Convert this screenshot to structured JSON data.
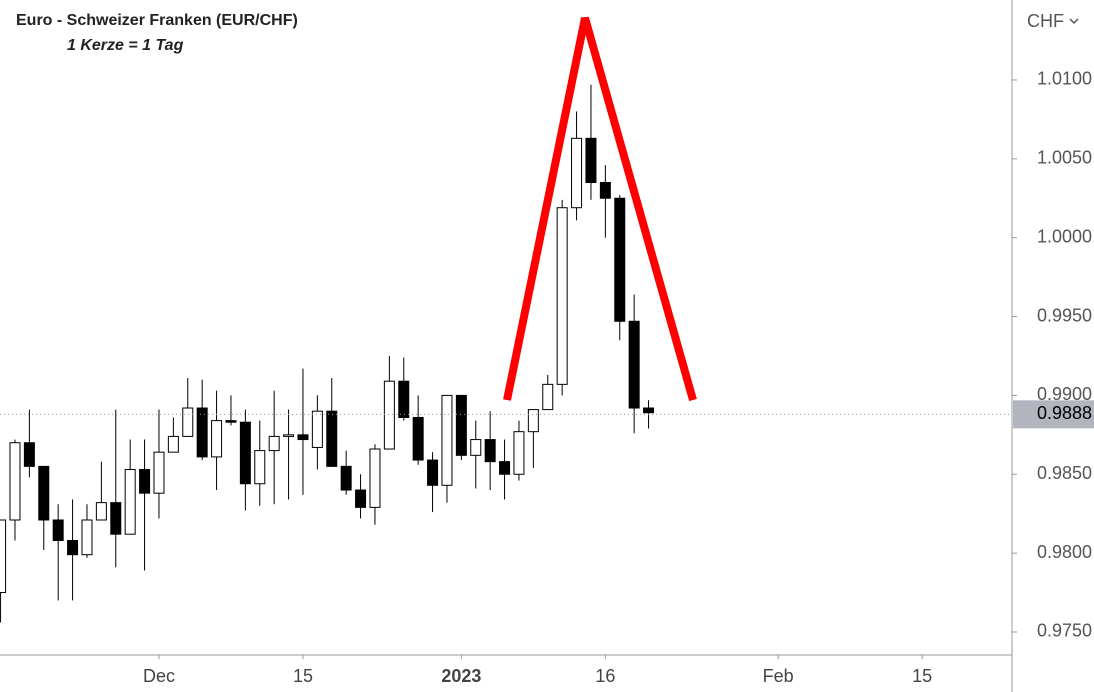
{
  "chart_data": {
    "type": "candlestick",
    "title": "Euro - Schweizer Franken (EUR/CHF)",
    "subtitle": "1 Kerze = 1 Tag",
    "y_axis_label": "CHF",
    "categories": [
      null,
      null,
      null,
      null,
      null,
      null,
      null,
      null,
      null,
      null,
      null,
      null,
      null,
      null,
      null,
      null,
      null,
      null,
      null,
      null,
      null,
      null,
      null,
      null,
      null,
      null,
      null,
      null,
      null,
      null,
      null,
      null,
      null,
      null,
      null,
      null,
      null,
      null,
      null,
      null,
      null,
      null,
      null,
      null,
      null,
      null
    ],
    "open": [
      0.9775,
      0.9821,
      0.987,
      0.9855,
      0.9821,
      0.9808,
      0.9799,
      0.9821,
      0.9832,
      0.9812,
      0.9853,
      0.9838,
      0.9864,
      0.9874,
      0.9892,
      0.9861,
      0.9884,
      0.9883,
      0.9844,
      0.9865,
      0.9874,
      0.9875,
      0.9867,
      0.989,
      0.9855,
      0.984,
      0.9829,
      0.9866,
      0.9909,
      0.9886,
      0.9859,
      0.9843,
      0.99,
      0.9862,
      0.9872,
      0.9858,
      0.985,
      0.9877,
      0.9891,
      0.9907,
      1.0019,
      1.0063,
      1.0035,
      1.0025,
      0.9947,
      0.9892
    ],
    "high": [
      0.9821,
      0.9872,
      0.9891,
      0.9855,
      0.9831,
      0.9834,
      0.9831,
      0.9858,
      0.9891,
      0.9872,
      0.9872,
      0.9891,
      0.9886,
      0.9911,
      0.991,
      0.9903,
      0.99,
      0.9891,
      0.9884,
      0.9903,
      0.9891,
      0.9917,
      0.99,
      0.9911,
      0.9865,
      0.985,
      0.9869,
      0.9925,
      0.9924,
      0.99,
      0.9864,
      0.99,
      0.99,
      0.9884,
      0.989,
      0.9872,
      0.9884,
      0.9891,
      0.9913,
      1.0024,
      1.008,
      1.0097,
      1.0046,
      1.0027,
      0.9964,
      0.9897
    ],
    "low": [
      0.9756,
      0.9808,
      0.9848,
      0.9802,
      0.977,
      0.977,
      0.9797,
      0.9821,
      0.9791,
      0.9812,
      0.9789,
      0.9822,
      0.9864,
      0.9874,
      0.9859,
      0.984,
      0.9881,
      0.9827,
      0.983,
      0.9831,
      0.9834,
      0.9837,
      0.9853,
      0.9855,
      0.9837,
      0.9822,
      0.9818,
      0.9866,
      0.9884,
      0.9856,
      0.9826,
      0.9832,
      0.9859,
      0.9841,
      0.984,
      0.9834,
      0.9846,
      0.9854,
      0.9891,
      0.99,
      1.0011,
      1.0024,
      1.0,
      0.9935,
      0.9876,
      0.9879
    ],
    "close": [
      0.9821,
      0.987,
      0.9855,
      0.9821,
      0.9808,
      0.9799,
      0.9821,
      0.9832,
      0.9812,
      0.9853,
      0.9838,
      0.9864,
      0.9874,
      0.9892,
      0.9861,
      0.9884,
      0.9883,
      0.9844,
      0.9865,
      0.9874,
      0.9875,
      0.9872,
      0.989,
      0.9855,
      0.984,
      0.9829,
      0.9866,
      0.9909,
      0.9886,
      0.9859,
      0.9843,
      0.99,
      0.9862,
      0.9872,
      0.9858,
      0.985,
      0.9877,
      0.9891,
      0.9907,
      1.0019,
      1.0063,
      1.0035,
      1.0025,
      0.9947,
      0.9892,
      0.9889
    ],
    "up_color": "#ffffff",
    "down_color": "#000000",
    "outline_color": "#000000",
    "last_price": 0.9888,
    "ylim": [
      0.97354,
      1.01507
    ],
    "yticks": [
      {
        "value": 0.975,
        "label": "0.9750"
      },
      {
        "value": 0.98,
        "label": "0.9800"
      },
      {
        "value": 0.985,
        "label": "0.9850"
      },
      {
        "value": 0.99,
        "label": "0.9900"
      },
      {
        "value": 0.995,
        "label": "0.9950"
      },
      {
        "value": 1.0,
        "label": "1.0000"
      },
      {
        "value": 1.005,
        "label": "1.0050"
      },
      {
        "value": 1.01,
        "label": "1.0100"
      }
    ],
    "xlim": [
      -0.04,
      70.24
    ],
    "xticks": [
      {
        "value": 11,
        "label": "Dec"
      },
      {
        "value": 21,
        "label": "15"
      },
      {
        "value": 32,
        "label": "2023"
      },
      {
        "value": 42,
        "label": "16"
      },
      {
        "value": 54,
        "label": "Feb"
      },
      {
        "value": 64,
        "label": "15"
      }
    ],
    "grid": false
  }
}
